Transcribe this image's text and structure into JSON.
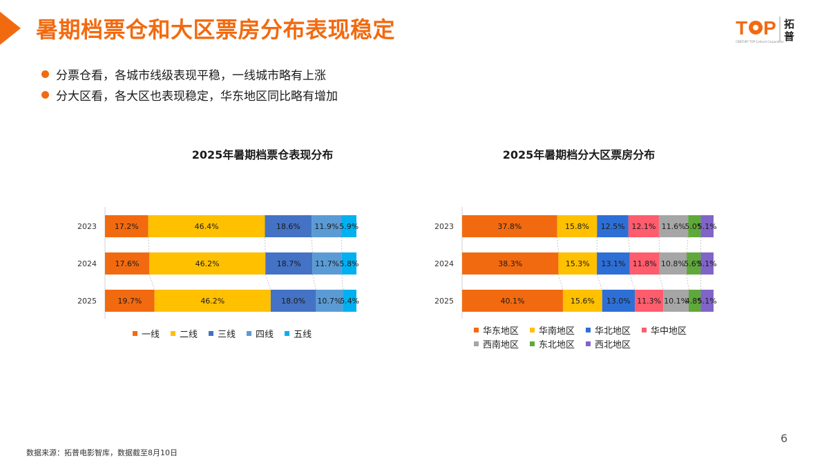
{
  "header": {
    "title": "暑期档票仓和大区票房分布表现稳定"
  },
  "logo": {
    "text": "TOP",
    "cn_top": "拓",
    "cn_bottom": "普",
    "tagline": "CENTURY TOP Cultural Corporation"
  },
  "bullets": [
    "分票仓看，各城市线级表现平稳，一线城市略有上涨",
    "分大区看，各大区也表现稳定，华东地区同比略有增加"
  ],
  "chart_data": [
    {
      "type": "bar",
      "orientation": "horizontal-stacked-100",
      "title": "2025年暑期档票仓表现分布",
      "categories": [
        "2023",
        "2024",
        "2025"
      ],
      "series": [
        {
          "name": "一线",
          "color": "#f26a10",
          "values": [
            17.2,
            17.6,
            19.7
          ],
          "labels": [
            "17.2%",
            "17.6%",
            "19.7%"
          ]
        },
        {
          "name": "二线",
          "color": "#ffc000",
          "values": [
            46.4,
            46.2,
            46.2
          ],
          "labels": [
            "46.4%",
            "46.2%",
            "46.2%"
          ]
        },
        {
          "name": "三线",
          "color": "#4472c4",
          "values": [
            18.6,
            18.7,
            18.0
          ],
          "labels": [
            "18.6%",
            "18.7%",
            "18.0%"
          ]
        },
        {
          "name": "四线",
          "color": "#5b9bd5",
          "values": [
            11.9,
            11.7,
            10.7
          ],
          "labels": [
            "11.9%",
            "11.7%",
            "10.7%"
          ]
        },
        {
          "name": "五线",
          "color": "#00b0f0",
          "values": [
            5.9,
            5.8,
            5.4
          ],
          "labels": [
            "5.9%",
            "5.8%",
            "5.4%"
          ]
        }
      ],
      "legend_position": "bottom"
    },
    {
      "type": "bar",
      "orientation": "horizontal-stacked-100",
      "title": "2025年暑期档分大区票房分布",
      "categories": [
        "2023",
        "2024",
        "2025"
      ],
      "series": [
        {
          "name": "华东地区",
          "color": "#f26a10",
          "values": [
            37.8,
            38.3,
            40.1
          ],
          "labels": [
            "37.8%",
            "38.3%",
            "40.1%"
          ]
        },
        {
          "name": "华南地区",
          "color": "#ffc000",
          "values": [
            15.8,
            15.3,
            15.6
          ],
          "labels": [
            "15.8%",
            "15.3%",
            "15.6%"
          ]
        },
        {
          "name": "华北地区",
          "color": "#2e6fd6",
          "values": [
            12.5,
            13.1,
            13.0
          ],
          "labels": [
            "12.5%",
            "13.1%",
            "13.0%"
          ]
        },
        {
          "name": "华中地区",
          "color": "#ff5c6e",
          "values": [
            12.1,
            11.8,
            11.3
          ],
          "labels": [
            "12.1%",
            "11.8%",
            "11.3%"
          ]
        },
        {
          "name": "西南地区",
          "color": "#a6a6a6",
          "values": [
            11.6,
            10.8,
            10.1
          ],
          "labels": [
            "11.6%",
            "10.8%",
            "10.1%"
          ]
        },
        {
          "name": "东北地区",
          "color": "#5fa83a",
          "values": [
            5.0,
            5.6,
            4.8
          ],
          "labels": [
            "5.0%",
            "5.6%",
            "4.8%"
          ]
        },
        {
          "name": "西北地区",
          "color": "#8064c8",
          "values": [
            5.1,
            5.1,
            5.1
          ],
          "labels": [
            "5.1%",
            "5.1%",
            "5.1%"
          ]
        }
      ],
      "legend_position": "bottom"
    }
  ],
  "footer": {
    "page_number": "6",
    "source": "数据来源：拓普电影智库，数据截至8月10日"
  }
}
